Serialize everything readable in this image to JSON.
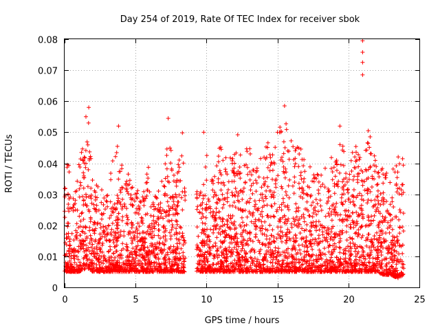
{
  "chart_data": {
    "type": "scatter",
    "title": "Day 254 of 2019, Rate Of TEC Index for receiver sbok",
    "xlabel": "GPS time / hours",
    "ylabel": "ROTI / TECUs",
    "xlim": [
      0,
      25
    ],
    "ylim": [
      0,
      0.08
    ],
    "x_ticks": [
      "0",
      "5",
      "10",
      "15",
      "20",
      "25"
    ],
    "y_ticks": [
      "0",
      "0.01",
      "0.02",
      "0.03",
      "0.04",
      "0.05",
      "0.06",
      "0.07",
      "0.08"
    ],
    "grid": true,
    "marker": "+",
    "color": "#ff0000",
    "envelope": {
      "x": [
        0,
        0.3,
        0.5,
        1.0,
        1.5,
        1.7,
        2.0,
        2.5,
        3.0,
        3.5,
        3.8,
        4.2,
        4.5,
        5.0,
        5.5,
        6.0,
        6.5,
        7.0,
        7.3,
        7.8,
        8.3,
        8.5,
        9.5,
        10.0,
        10.5,
        11.0,
        11.5,
        12.0,
        12.5,
        13.0,
        13.5,
        14.0,
        14.5,
        15.0,
        15.5,
        16.0,
        16.5,
        17.0,
        17.5,
        18.0,
        18.5,
        19.0,
        19.5,
        20.0,
        20.5,
        21.0,
        21.5,
        22.0,
        22.5,
        23.0,
        23.5,
        23.9
      ],
      "low": [
        0.005,
        0.005,
        0.005,
        0.005,
        0.006,
        0.006,
        0.005,
        0.005,
        0.005,
        0.005,
        0.005,
        0.005,
        0.005,
        0.005,
        0.005,
        0.005,
        0.005,
        0.005,
        0.005,
        0.005,
        0.005,
        0.005,
        0.005,
        0.005,
        0.005,
        0.005,
        0.005,
        0.005,
        0.005,
        0.005,
        0.005,
        0.005,
        0.005,
        0.005,
        0.005,
        0.005,
        0.005,
        0.005,
        0.005,
        0.005,
        0.005,
        0.005,
        0.005,
        0.005,
        0.005,
        0.005,
        0.005,
        0.005,
        0.004,
        0.004,
        0.003,
        0.004
      ],
      "high": [
        0.038,
        0.042,
        0.028,
        0.04,
        0.052,
        0.056,
        0.032,
        0.034,
        0.03,
        0.046,
        0.052,
        0.033,
        0.038,
        0.032,
        0.034,
        0.04,
        0.032,
        0.036,
        0.052,
        0.034,
        0.048,
        0.03,
        0.032,
        0.043,
        0.036,
        0.047,
        0.04,
        0.046,
        0.045,
        0.045,
        0.042,
        0.044,
        0.048,
        0.05,
        0.058,
        0.047,
        0.048,
        0.042,
        0.038,
        0.036,
        0.04,
        0.044,
        0.05,
        0.04,
        0.046,
        0.042,
        0.05,
        0.04,
        0.038,
        0.036,
        0.044,
        0.042
      ]
    },
    "gap": [
      8.5,
      9.3
    ],
    "outliers": [
      {
        "x": 21.0,
        "y": 0.0795
      },
      {
        "x": 21.0,
        "y": 0.0758
      },
      {
        "x": 21.0,
        "y": 0.0725
      },
      {
        "x": 21.0,
        "y": 0.0685
      },
      {
        "x": 15.5,
        "y": 0.0585
      },
      {
        "x": 1.7,
        "y": 0.058
      },
      {
        "x": 1.5,
        "y": 0.055
      },
      {
        "x": 7.3,
        "y": 0.0545
      },
      {
        "x": 3.8,
        "y": 0.052
      },
      {
        "x": 19.4,
        "y": 0.052
      },
      {
        "x": 21.4,
        "y": 0.0505
      },
      {
        "x": 9.8,
        "y": 0.05
      },
      {
        "x": 8.3,
        "y": 0.0498
      },
      {
        "x": 12.2,
        "y": 0.0492
      },
      {
        "x": 15.0,
        "y": 0.05
      }
    ]
  }
}
